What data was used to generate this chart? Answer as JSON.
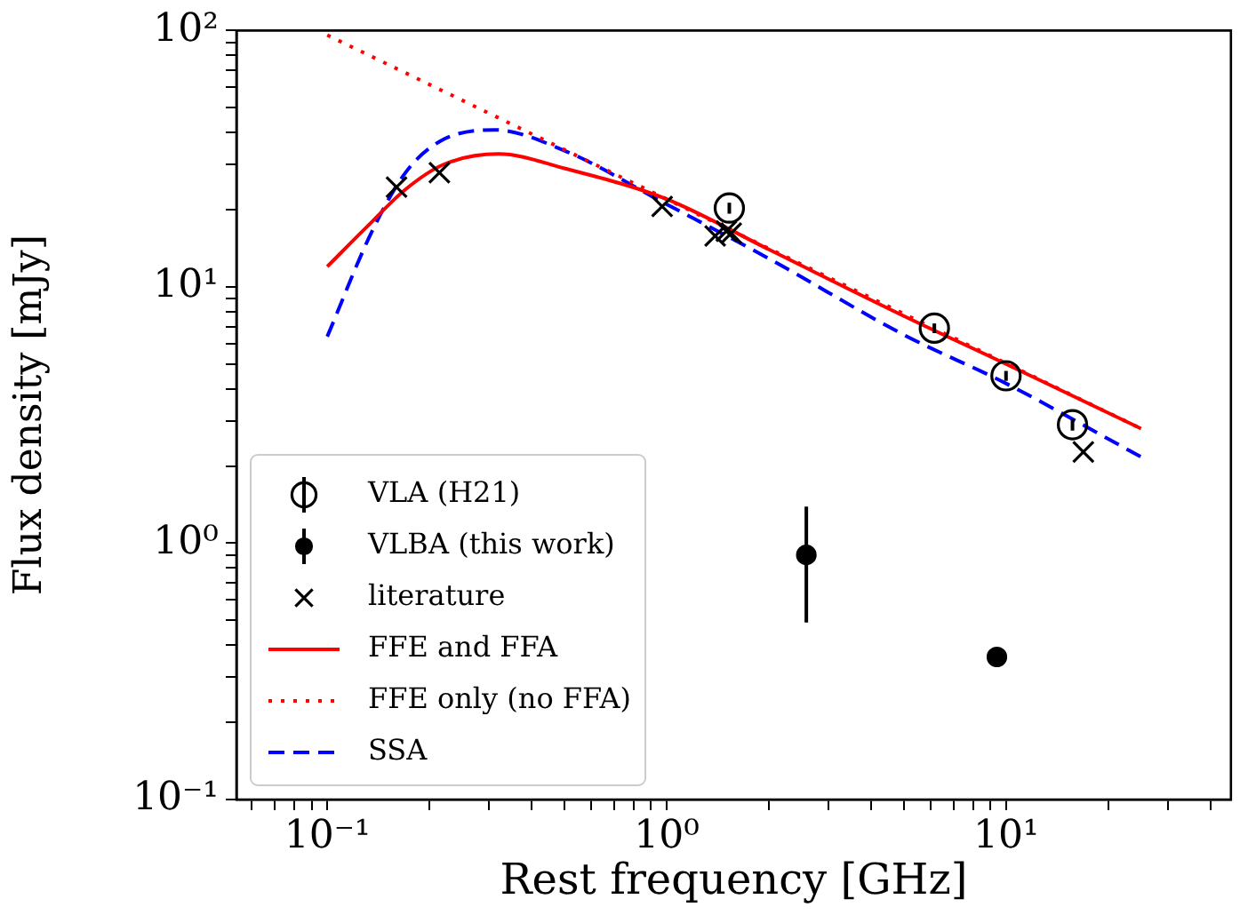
{
  "chart_data": {
    "type": "scatter",
    "xlabel": "Rest frequency [GHz]",
    "ylabel": "Flux density [mJy]",
    "log": "xy",
    "grid": false,
    "legend": "bottom left",
    "xlim": [
      0.054,
      46
    ],
    "ylim": [
      0.1,
      100
    ],
    "xticks": [
      {
        "value": 0.06,
        "label": null
      },
      {
        "value": 0.07,
        "label": null
      },
      {
        "value": 0.08,
        "label": null
      },
      {
        "value": 0.09,
        "label": null
      },
      {
        "value": 0.1,
        "label": "10⁻¹"
      },
      {
        "value": 0.2,
        "label": null
      },
      {
        "value": 0.3,
        "label": null
      },
      {
        "value": 0.4,
        "label": null
      },
      {
        "value": 0.5,
        "label": null
      },
      {
        "value": 0.6,
        "label": null
      },
      {
        "value": 0.7,
        "label": null
      },
      {
        "value": 0.8,
        "label": null
      },
      {
        "value": 0.9,
        "label": null
      },
      {
        "value": 1,
        "label": "10⁰"
      },
      {
        "value": 2,
        "label": null
      },
      {
        "value": 3,
        "label": null
      },
      {
        "value": 4,
        "label": null
      },
      {
        "value": 5,
        "label": null
      },
      {
        "value": 6,
        "label": null
      },
      {
        "value": 7,
        "label": null
      },
      {
        "value": 8,
        "label": null
      },
      {
        "value": 9,
        "label": null
      },
      {
        "value": 10,
        "label": "10¹"
      },
      {
        "value": 20,
        "label": null
      },
      {
        "value": 30,
        "label": null
      },
      {
        "value": 40,
        "label": null
      }
    ],
    "yticks": [
      {
        "value": 0.1,
        "label": "10⁻¹"
      },
      {
        "value": 0.2,
        "label": null
      },
      {
        "value": 0.3,
        "label": null
      },
      {
        "value": 0.4,
        "label": null
      },
      {
        "value": 0.5,
        "label": null
      },
      {
        "value": 0.6,
        "label": null
      },
      {
        "value": 0.7,
        "label": null
      },
      {
        "value": 0.8,
        "label": null
      },
      {
        "value": 0.9,
        "label": null
      },
      {
        "value": 1,
        "label": "10⁰"
      },
      {
        "value": 2,
        "label": null
      },
      {
        "value": 3,
        "label": null
      },
      {
        "value": 4,
        "label": null
      },
      {
        "value": 5,
        "label": null
      },
      {
        "value": 6,
        "label": null
      },
      {
        "value": 7,
        "label": null
      },
      {
        "value": 8,
        "label": null
      },
      {
        "value": 9,
        "label": null
      },
      {
        "value": 10,
        "label": "10¹"
      },
      {
        "value": 20,
        "label": null
      },
      {
        "value": 30,
        "label": null
      },
      {
        "value": 40,
        "label": null
      },
      {
        "value": 50,
        "label": null
      },
      {
        "value": 60,
        "label": null
      },
      {
        "value": 70,
        "label": null
      },
      {
        "value": 80,
        "label": null
      },
      {
        "value": 90,
        "label": null
      },
      {
        "value": 100,
        "label": "10²"
      }
    ],
    "series": [
      {
        "name": "VLA (H21)",
        "marker": "circle",
        "color": "#000000",
        "x": [
          1.53,
          6.15,
          10.0,
          15.7
        ],
        "values": [
          20.3,
          6.9,
          4.5,
          2.9
        ],
        "errors": [
          1.0,
          0.3,
          0.2,
          0.15
        ]
      },
      {
        "name": "VLBA (this work)",
        "marker": "circle",
        "color": "#000000",
        "x": [
          2.58,
          9.4
        ],
        "values": [
          0.9,
          0.36
        ],
        "errors": [
          [
            0.49,
            1.39
          ],
          0.03
        ]
      },
      {
        "name": "literature",
        "marker": "cross",
        "color": "#000000",
        "x": [
          0.16,
          0.214,
          0.97,
          1.39,
          1.5,
          1.55,
          16.9
        ],
        "values": [
          24.5,
          27.9,
          20.6,
          15.8,
          16.5,
          16.2,
          2.27
        ]
      },
      {
        "name": "FFE and FFA",
        "type": "line",
        "line_style": "solid",
        "color": "#ff0000",
        "x": [
          0.1,
          0.13,
          0.17,
          0.22,
          0.32,
          0.5,
          1,
          2,
          5,
          10,
          25
        ],
        "values": [
          12,
          17,
          24,
          30,
          33,
          29,
          22,
          14,
          7.7,
          5,
          2.8
        ]
      },
      {
        "name": "FFE only (no FFA)",
        "type": "line",
        "line_style": "dotted",
        "color": "#ff0000",
        "x": [
          0.1,
          1,
          25
        ],
        "values": [
          96,
          22,
          2.8
        ]
      },
      {
        "name": "SSA",
        "type": "line",
        "line_style": "dashed",
        "color": "#0000ff",
        "x": [
          0.1,
          0.135,
          0.17,
          0.215,
          0.31,
          0.5,
          1,
          2,
          5,
          10,
          25
        ],
        "values": [
          6.4,
          16.3,
          27.9,
          37,
          41,
          34,
          21,
          12.9,
          6.5,
          4.2,
          2.17
        ]
      }
    ]
  }
}
